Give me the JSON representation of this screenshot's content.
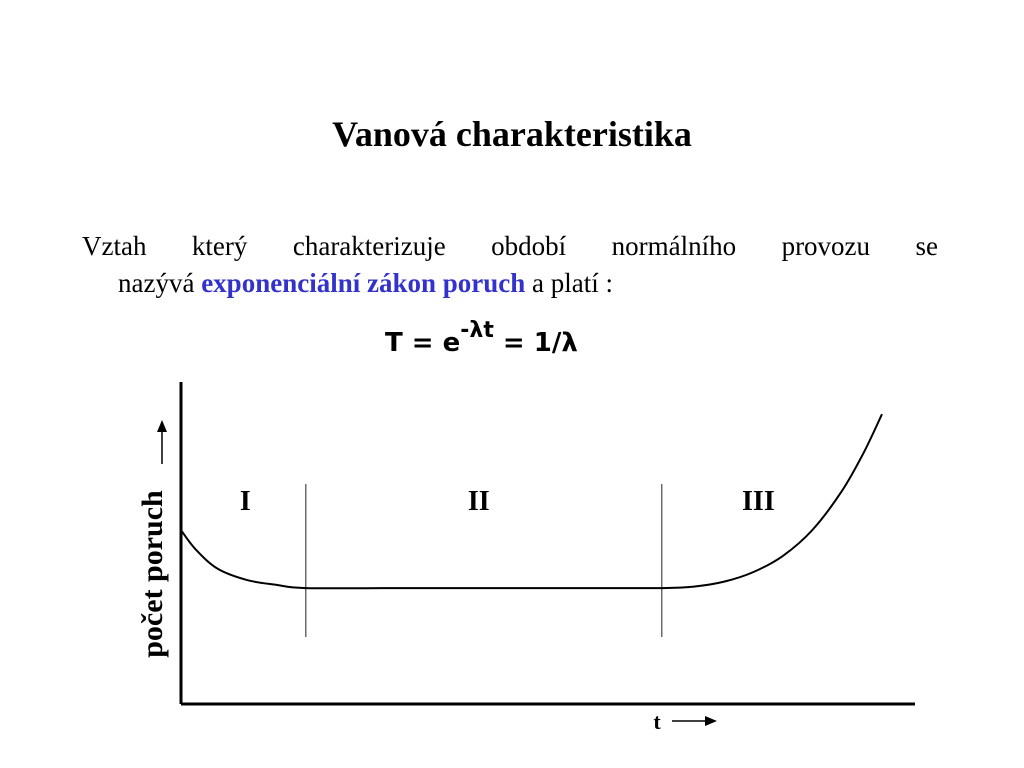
{
  "slide": {
    "title": "Vanová charakteristika",
    "paragraph": {
      "line1": "Vztah který charakterizuje období normálního provozu se",
      "line2_prefix": "nazývá ",
      "highlight": "exponenciální zákon poruch",
      "line2_suffix": " a platí :"
    },
    "formula": {
      "lhs": "T = e",
      "exponent": "-λt",
      "rhs": " = 1/λ"
    },
    "colors": {
      "highlight": "#3333CC",
      "text": "#000000"
    }
  },
  "chart_data": {
    "type": "line",
    "title": "",
    "xlabel": "t",
    "ylabel": "počet poruch",
    "regions": [
      "I",
      "II",
      "III"
    ],
    "region_boundaries": [
      0.17,
      0.655
    ],
    "series": [
      {
        "x": [
          0.0,
          0.02,
          0.05,
          0.09,
          0.13,
          0.17,
          0.3,
          0.5,
          0.655,
          0.7,
          0.74,
          0.78,
          0.82,
          0.86,
          0.9,
          0.93,
          0.955
        ],
        "values": [
          0.54,
          0.48,
          0.42,
          0.385,
          0.37,
          0.36,
          0.36,
          0.36,
          0.36,
          0.365,
          0.38,
          0.41,
          0.46,
          0.54,
          0.66,
          0.78,
          0.9
        ]
      }
    ],
    "xlim": [
      0,
      1
    ],
    "ylim": [
      0,
      1
    ],
    "grid": false,
    "legend": "none"
  }
}
